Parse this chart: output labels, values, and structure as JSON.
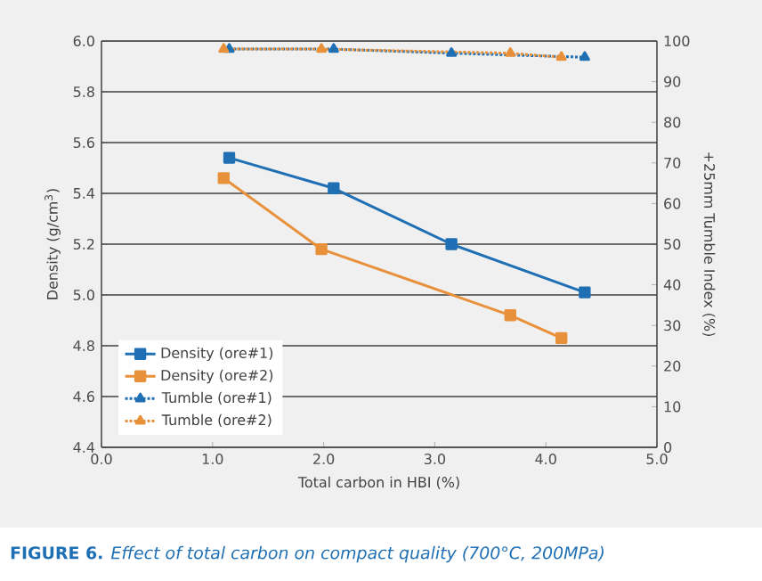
{
  "chart_data": {
    "type": "line",
    "title": "**FIGURE 6.** *Effect of total carbon on compact quality (700°C, 200MPa)*",
    "xlabel": "Total carbon in HBI (%)",
    "ylabel": "Density (g/cm$^{3}$)",
    "y2label": "+25mm Tumble Index (%)",
    "xlim": [
      0,
      5
    ],
    "xticks": [
      {
        "value": 0,
        "label": "0.0"
      },
      {
        "value": 1,
        "label": "1.0"
      },
      {
        "value": 2,
        "label": "2.0"
      },
      {
        "value": 3,
        "label": "3.0"
      },
      {
        "value": 4,
        "label": "4.0"
      },
      {
        "value": 5,
        "label": "5.0"
      }
    ],
    "ylim": [
      4.4,
      6.0
    ],
    "yticks": [
      {
        "value": 4.4,
        "label": "4.4"
      },
      {
        "value": 4.6,
        "label": "4.6"
      },
      {
        "value": 4.8,
        "label": "4.8"
      },
      {
        "value": 5.0,
        "label": "5.0"
      },
      {
        "value": 5.2,
        "label": "5.2"
      },
      {
        "value": 5.4,
        "label": "5.4"
      },
      {
        "value": 5.6,
        "label": "5.6"
      },
      {
        "value": 5.8,
        "label": "5.8"
      },
      {
        "value": 6.0,
        "label": "6.0"
      }
    ],
    "y2lim": [
      0,
      100
    ],
    "y2ticks": [
      0,
      10,
      20,
      30,
      40,
      50,
      60,
      70,
      80,
      90,
      100
    ],
    "grid": "y",
    "legend": "bottom left",
    "series": [
      {
        "name": "Density (ore#1)",
        "color": "#1f6fb4",
        "marker": "square",
        "line_style": "solid",
        "x": [
          1.15,
          2.09,
          3.15,
          4.35
        ],
        "values": [
          5.54,
          5.42,
          5.2,
          5.01
        ]
      },
      {
        "name": "Density (ore#2)",
        "color": "#e8913a",
        "marker": "square",
        "line_style": "solid",
        "x": [
          1.1,
          1.98,
          3.68,
          4.14
        ],
        "values": [
          5.46,
          5.18,
          4.92,
          4.83
        ]
      },
      {
        "name": "Tumble (ore#1)",
        "color": "#1f6fb4",
        "marker": "triangle",
        "line_style": "dotted",
        "axis": "y2",
        "x": [
          1.15,
          2.09,
          3.15,
          4.35
        ],
        "values": [
          98,
          98,
          97,
          96
        ]
      },
      {
        "name": "Tumble (ore#2)",
        "color": "#e8913a",
        "marker": "triangle",
        "line_style": "dotted",
        "axis": "y2",
        "x": [
          1.1,
          1.98,
          3.68,
          4.14
        ],
        "values": [
          98,
          98,
          97,
          96
        ]
      }
    ]
  }
}
